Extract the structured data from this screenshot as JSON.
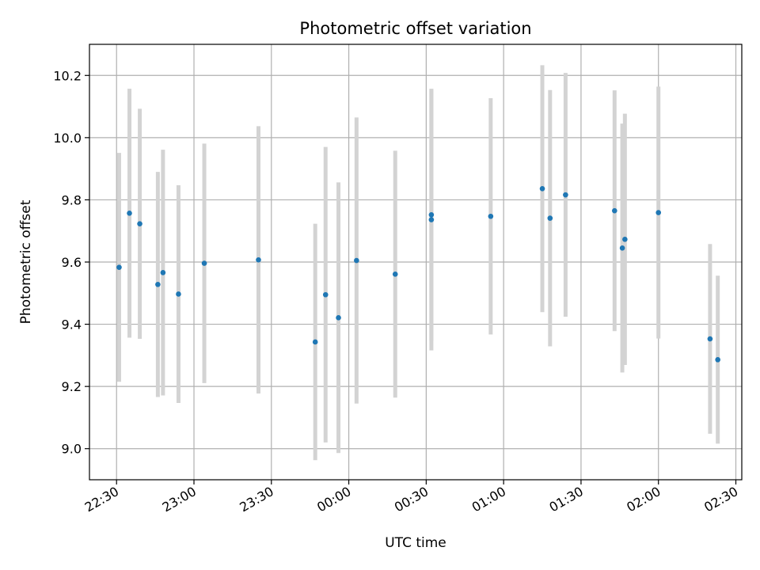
{
  "chart_data": {
    "type": "scatter",
    "title": "Photometric offset variation",
    "xlabel": "UTC time",
    "ylabel": "Photometric offset",
    "x_ticks": [
      "22:30",
      "23:00",
      "23:30",
      "00:00",
      "00:30",
      "01:00",
      "01:30",
      "02:00",
      "02:30"
    ],
    "x_tick_minutes": [
      0,
      30,
      60,
      90,
      120,
      150,
      180,
      210,
      240
    ],
    "xlim_minutes": [
      -10.5,
      242.3
    ],
    "y_ticks": [
      "9.0",
      "9.2",
      "9.4",
      "9.6",
      "9.8",
      "10.0",
      "10.2"
    ],
    "y_tick_values": [
      9.0,
      9.2,
      9.4,
      9.6,
      9.8,
      10.0,
      10.2
    ],
    "ylim": [
      8.9,
      10.3
    ],
    "grid": true,
    "colors": {
      "marker": "#1f77b4",
      "errorbar": "#d3d3d3",
      "grid": "#b0b0b0"
    },
    "points": [
      {
        "t": "22:31",
        "y": 9.583,
        "err": 0.368
      },
      {
        "t": "22:35",
        "y": 9.757,
        "err": 0.4
      },
      {
        "t": "22:39",
        "y": 9.723,
        "err": 0.37
      },
      {
        "t": "22:46",
        "y": 9.528,
        "err": 0.362
      },
      {
        "t": "22:48",
        "y": 9.566,
        "err": 0.395
      },
      {
        "t": "22:54",
        "y": 9.497,
        "err": 0.35
      },
      {
        "t": "23:04",
        "y": 9.596,
        "err": 0.385
      },
      {
        "t": "23:25",
        "y": 9.607,
        "err": 0.43
      },
      {
        "t": "23:47",
        "y": 9.343,
        "err": 0.38
      },
      {
        "t": "23:51",
        "y": 9.495,
        "err": 0.475
      },
      {
        "t": "23:56",
        "y": 9.421,
        "err": 0.435
      },
      {
        "t": "00:03",
        "y": 9.605,
        "err": 0.46
      },
      {
        "t": "00:18",
        "y": 9.561,
        "err": 0.397
      },
      {
        "t": "00:32",
        "y": 9.752,
        "err": 0.405
      },
      {
        "t": "00:32",
        "y": 9.736,
        "err": 0.42
      },
      {
        "t": "00:55",
        "y": 9.747,
        "err": 0.38
      },
      {
        "t": "01:15",
        "y": 9.836,
        "err": 0.397
      },
      {
        "t": "01:18",
        "y": 9.741,
        "err": 0.412
      },
      {
        "t": "01:24",
        "y": 9.816,
        "err": 0.392
      },
      {
        "t": "01:43",
        "y": 9.765,
        "err": 0.387
      },
      {
        "t": "01:46",
        "y": 9.645,
        "err": 0.4
      },
      {
        "t": "01:47",
        "y": 9.673,
        "err": 0.404
      },
      {
        "t": "02:00",
        "y": 9.759,
        "err": 0.405
      },
      {
        "t": "02:20",
        "y": 9.353,
        "err": 0.305
      },
      {
        "t": "02:23",
        "y": 9.286,
        "err": 0.27
      }
    ]
  }
}
